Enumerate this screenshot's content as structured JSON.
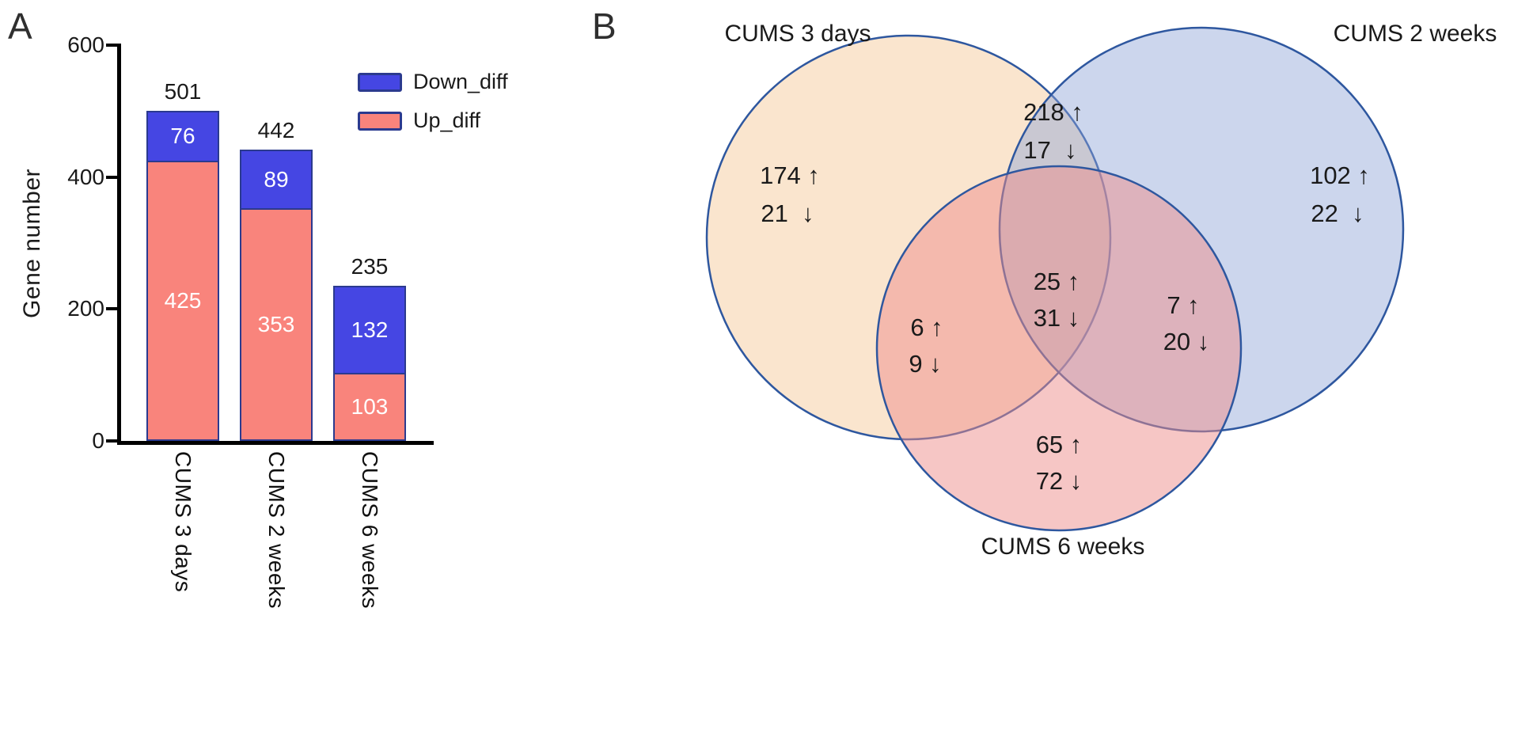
{
  "panels": {
    "a": {
      "label": "A"
    },
    "b": {
      "label": "B"
    }
  },
  "chart_data": [
    {
      "type": "bar",
      "variant": "stacked",
      "panel": "A",
      "title": "",
      "xlabel": "",
      "ylabel": "Gene number",
      "ylim": [
        0,
        600
      ],
      "yticks": [
        0,
        200,
        400,
        600
      ],
      "grid": false,
      "categories": [
        "CUMS 3 days",
        "CUMS 2 weeks",
        "CUMS 6 weeks"
      ],
      "series": [
        {
          "name": "Up_diff",
          "color": "#F9847C",
          "values": [
            425,
            353,
            103
          ]
        },
        {
          "name": "Down_diff",
          "color": "#4546E3",
          "values": [
            76,
            89,
            132
          ]
        }
      ],
      "totals": [
        501,
        442,
        235
      ],
      "legend": {
        "position": "top-right",
        "entries": [
          {
            "label": "Down_diff",
            "color": "#4546E3"
          },
          {
            "label": "Up_diff",
            "color": "#F9847C"
          }
        ]
      }
    },
    {
      "type": "venn",
      "panel": "B",
      "stroke_color": "#2E579F",
      "sets": [
        {
          "name": "CUMS 3 days",
          "fill": "#F2C18B"
        },
        {
          "name": "CUMS 2 weeks",
          "fill": "#8FA3D6"
        },
        {
          "name": "CUMS 6 weeks",
          "fill": "#EE8E8C"
        }
      ],
      "regions": {
        "a_only": {
          "up": 174,
          "down": 21,
          "up_label": "174 ↑",
          "down_label": "21  ↓"
        },
        "ab": {
          "up": 218,
          "down": 17,
          "up_label": "218 ↑",
          "down_label": "17  ↓"
        },
        "b_only": {
          "up": 102,
          "down": 22,
          "up_label": "102 ↑",
          "down_label": "22  ↓"
        },
        "abc": {
          "up": 25,
          "down": 31,
          "up_label": "25 ↑",
          "down_label": "31 ↓"
        },
        "ac": {
          "up": 6,
          "down": 9,
          "up_label": "6 ↑",
          "down_label": "9 ↓"
        },
        "bc": {
          "up": 7,
          "down": 20,
          "up_label": "7 ↑",
          "down_label": "20 ↓"
        },
        "c_only": {
          "up": 65,
          "down": 72,
          "up_label": "65 ↑",
          "down_label": "72 ↓"
        }
      }
    }
  ]
}
